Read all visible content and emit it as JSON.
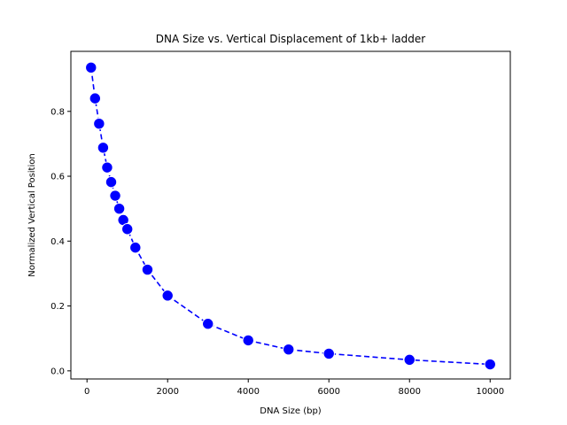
{
  "colors": {
    "series": "#0000ff",
    "marker_edge": "#ffffff"
  },
  "chart_data": {
    "type": "scatter",
    "title": "DNA Size vs. Vertical Displacement of 1kb+ ladder",
    "xlabel": "DNA Size (bp)",
    "ylabel": "Normalized Vertical Position",
    "xlim": [
      -400,
      10500
    ],
    "ylim": [
      -0.025,
      0.985
    ],
    "x_ticks": [
      0,
      2000,
      4000,
      6000,
      8000,
      10000
    ],
    "x_tick_labels": [
      "0",
      "2000",
      "4000",
      "6000",
      "8000",
      "10000"
    ],
    "y_ticks": [
      0.0,
      0.2,
      0.4,
      0.6,
      0.8
    ],
    "y_tick_labels": [
      "0.0",
      "0.2",
      "0.4",
      "0.6",
      "0.8"
    ],
    "grid": false,
    "line_style": "dashed",
    "marker": "circle",
    "series": [
      {
        "x": [
          100,
          200,
          300,
          400,
          500,
          600,
          700,
          800,
          900,
          1000,
          1200,
          1500,
          2000,
          3000,
          4000,
          5000,
          6000,
          8000,
          10000
        ],
        "y": [
          0.935,
          0.84,
          0.762,
          0.688,
          0.627,
          0.582,
          0.54,
          0.5,
          0.465,
          0.437,
          0.38,
          0.312,
          0.232,
          0.145,
          0.094,
          0.066,
          0.053,
          0.034,
          0.02
        ]
      }
    ]
  }
}
